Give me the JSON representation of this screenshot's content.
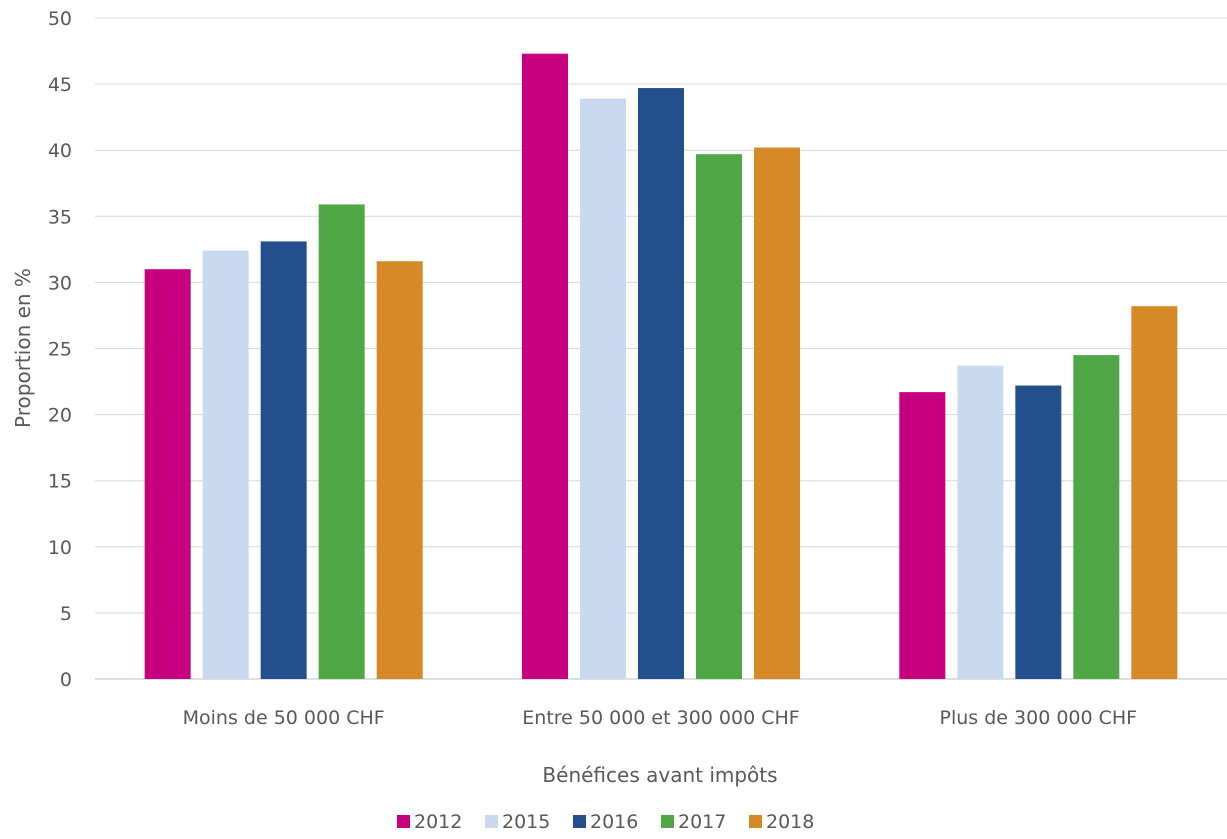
{
  "chart_data": {
    "type": "bar",
    "categories": [
      "Moins de 50 000 CHF",
      "Entre 50 000 et 300 000 CHF",
      "Plus de 300 000 CHF"
    ],
    "series": [
      {
        "name": "2012",
        "color": "#C6007E",
        "values": [
          31.0,
          47.3,
          21.7
        ]
      },
      {
        "name": "2015",
        "color": "#C9D9F0",
        "values": [
          32.4,
          43.9,
          23.7
        ]
      },
      {
        "name": "2016",
        "color": "#234F8D",
        "values": [
          33.1,
          44.7,
          22.2
        ]
      },
      {
        "name": "2017",
        "color": "#4FA845",
        "values": [
          35.9,
          39.7,
          24.5
        ]
      },
      {
        "name": "2018",
        "color": "#D68927",
        "values": [
          31.6,
          40.2,
          28.2
        ]
      }
    ],
    "xlabel": "Bénéfices avant impôts",
    "ylabel": "Proportion en %",
    "ylim": [
      0,
      50
    ],
    "yticks": [
      0,
      5,
      10,
      15,
      20,
      25,
      30,
      35,
      40,
      45,
      50
    ],
    "grid": true,
    "legend_position": "bottom"
  }
}
